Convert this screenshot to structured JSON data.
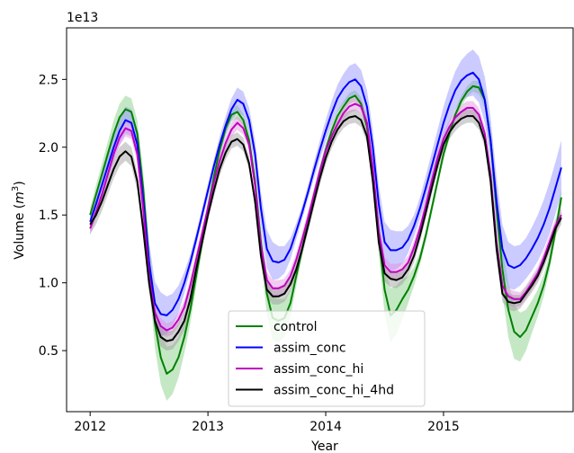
{
  "chart_data": {
    "type": "line",
    "title": "",
    "xlabel": "Year",
    "ylabel": "Volume ($m^3$)",
    "y_offset_label": "1e13",
    "x_ticks": [
      "2012",
      "2013",
      "2014",
      "2015"
    ],
    "y_ticks": [
      "0.5",
      "1.0",
      "1.5",
      "2.0",
      "2.5"
    ],
    "xlim": [
      2011.8,
      2016.1
    ],
    "ylim": [
      0.05,
      2.88
    ],
    "grid": false,
    "legend_position": "lower center",
    "series": [
      {
        "name": "control",
        "color": "#008000",
        "band_color": "#7ccc7c",
        "x": [
          2012.0,
          2012.05,
          2012.1,
          2012.15,
          2012.2,
          2012.25,
          2012.3,
          2012.35,
          2012.4,
          2012.45,
          2012.5,
          2012.55,
          2012.6,
          2012.65,
          2012.7,
          2012.75,
          2012.8,
          2012.85,
          2012.9,
          2012.95,
          2013.0,
          2013.05,
          2013.1,
          2013.15,
          2013.2,
          2013.25,
          2013.3,
          2013.35,
          2013.4,
          2013.45,
          2013.5,
          2013.55,
          2013.6,
          2013.65,
          2013.7,
          2013.75,
          2013.8,
          2013.85,
          2013.9,
          2013.95,
          2014.0,
          2014.05,
          2014.1,
          2014.15,
          2014.2,
          2014.25,
          2014.3,
          2014.35,
          2014.4,
          2014.45,
          2014.5,
          2014.55,
          2014.6,
          2014.65,
          2014.7,
          2014.75,
          2014.8,
          2014.85,
          2014.9,
          2014.95,
          2015.0,
          2015.05,
          2015.1,
          2015.15,
          2015.2,
          2015.25,
          2015.3,
          2015.35,
          2015.4,
          2015.45,
          2015.5,
          2015.55,
          2015.6,
          2015.65,
          2015.7,
          2015.75,
          2015.8,
          2015.85,
          2015.9,
          2015.95,
          2016.0
        ],
        "y": [
          1.5,
          1.65,
          1.8,
          1.95,
          2.1,
          2.22,
          2.28,
          2.26,
          2.1,
          1.7,
          1.15,
          0.7,
          0.45,
          0.33,
          0.36,
          0.45,
          0.6,
          0.8,
          1.05,
          1.3,
          1.55,
          1.78,
          1.98,
          2.14,
          2.24,
          2.26,
          2.2,
          2.05,
          1.75,
          1.3,
          0.92,
          0.74,
          0.72,
          0.74,
          0.85,
          1.05,
          1.25,
          1.45,
          1.65,
          1.82,
          1.98,
          2.12,
          2.23,
          2.3,
          2.36,
          2.38,
          2.32,
          2.15,
          1.8,
          1.35,
          0.95,
          0.76,
          0.8,
          0.88,
          0.95,
          1.05,
          1.18,
          1.35,
          1.55,
          1.75,
          1.95,
          2.1,
          2.24,
          2.34,
          2.41,
          2.45,
          2.44,
          2.35,
          2.05,
          1.55,
          1.1,
          0.8,
          0.64,
          0.6,
          0.65,
          0.75,
          0.85,
          0.98,
          1.15,
          1.38,
          1.63
        ],
        "band_halfwidth": [
          0.05,
          0.07,
          0.08,
          0.09,
          0.1,
          0.1,
          0.1,
          0.1,
          0.1,
          0.12,
          0.15,
          0.18,
          0.2,
          0.2,
          0.18,
          0.15,
          0.12,
          0.1,
          0.08,
          0.06,
          0.05,
          0.05,
          0.05,
          0.05,
          0.05,
          0.05,
          0.05,
          0.06,
          0.08,
          0.12,
          0.15,
          0.16,
          0.16,
          0.14,
          0.1,
          0.07,
          0.05,
          0.04,
          0.04,
          0.04,
          0.04,
          0.04,
          0.04,
          0.04,
          0.04,
          0.04,
          0.05,
          0.06,
          0.1,
          0.14,
          0.18,
          0.2,
          0.18,
          0.15,
          0.1,
          0.07,
          0.05,
          0.04,
          0.04,
          0.04,
          0.04,
          0.04,
          0.04,
          0.04,
          0.04,
          0.04,
          0.05,
          0.06,
          0.1,
          0.15,
          0.18,
          0.2,
          0.2,
          0.18,
          0.15,
          0.12,
          0.1,
          0.08,
          0.06,
          0.06,
          0.06
        ]
      },
      {
        "name": "assim_conc",
        "color": "#0000ff",
        "band_color": "#8c8cff",
        "x": [
          2012.0,
          2012.05,
          2012.1,
          2012.15,
          2012.2,
          2012.25,
          2012.3,
          2012.35,
          2012.4,
          2012.45,
          2012.5,
          2012.55,
          2012.6,
          2012.65,
          2012.7,
          2012.75,
          2012.8,
          2012.85,
          2012.9,
          2012.95,
          2013.0,
          2013.05,
          2013.1,
          2013.15,
          2013.2,
          2013.25,
          2013.3,
          2013.35,
          2013.4,
          2013.45,
          2013.5,
          2013.55,
          2013.6,
          2013.65,
          2013.7,
          2013.75,
          2013.8,
          2013.85,
          2013.9,
          2013.95,
          2014.0,
          2014.05,
          2014.1,
          2014.15,
          2014.2,
          2014.25,
          2014.3,
          2014.35,
          2014.4,
          2014.45,
          2014.5,
          2014.55,
          2014.6,
          2014.65,
          2014.7,
          2014.75,
          2014.8,
          2014.85,
          2014.9,
          2014.95,
          2015.0,
          2015.05,
          2015.1,
          2015.15,
          2015.2,
          2015.25,
          2015.3,
          2015.35,
          2015.4,
          2015.45,
          2015.5,
          2015.55,
          2015.6,
          2015.65,
          2015.7,
          2015.75,
          2015.8,
          2015.85,
          2015.9,
          2015.95,
          2016.0
        ],
        "y": [
          1.45,
          1.58,
          1.72,
          1.86,
          2.0,
          2.12,
          2.2,
          2.18,
          2.02,
          1.62,
          1.15,
          0.85,
          0.77,
          0.76,
          0.8,
          0.88,
          1.0,
          1.15,
          1.32,
          1.5,
          1.68,
          1.86,
          2.02,
          2.16,
          2.28,
          2.35,
          2.32,
          2.2,
          1.95,
          1.55,
          1.25,
          1.16,
          1.15,
          1.17,
          1.25,
          1.38,
          1.52,
          1.67,
          1.83,
          1.98,
          2.12,
          2.25,
          2.36,
          2.43,
          2.48,
          2.5,
          2.45,
          2.3,
          2.0,
          1.58,
          1.3,
          1.24,
          1.24,
          1.26,
          1.32,
          1.42,
          1.55,
          1.7,
          1.86,
          2.02,
          2.18,
          2.31,
          2.42,
          2.49,
          2.53,
          2.55,
          2.5,
          2.35,
          2.05,
          1.6,
          1.25,
          1.13,
          1.11,
          1.13,
          1.18,
          1.25,
          1.33,
          1.43,
          1.55,
          1.7,
          1.85
        ],
        "band_halfwidth": [
          0.05,
          0.06,
          0.07,
          0.08,
          0.09,
          0.1,
          0.1,
          0.1,
          0.1,
          0.12,
          0.15,
          0.16,
          0.16,
          0.14,
          0.12,
          0.1,
          0.08,
          0.06,
          0.05,
          0.05,
          0.05,
          0.05,
          0.06,
          0.07,
          0.08,
          0.09,
          0.09,
          0.09,
          0.1,
          0.12,
          0.14,
          0.14,
          0.12,
          0.1,
          0.08,
          0.06,
          0.05,
          0.05,
          0.06,
          0.07,
          0.08,
          0.09,
          0.1,
          0.11,
          0.12,
          0.12,
          0.12,
          0.12,
          0.13,
          0.14,
          0.15,
          0.15,
          0.14,
          0.12,
          0.1,
          0.08,
          0.08,
          0.09,
          0.1,
          0.11,
          0.12,
          0.13,
          0.14,
          0.15,
          0.16,
          0.17,
          0.17,
          0.17,
          0.17,
          0.18,
          0.18,
          0.17,
          0.16,
          0.15,
          0.15,
          0.16,
          0.17,
          0.18,
          0.19,
          0.19,
          0.2
        ]
      },
      {
        "name": "assim_conc_hi",
        "color": "#bf00bf",
        "band_color": "#df8cdf",
        "x": [
          2012.0,
          2012.05,
          2012.1,
          2012.15,
          2012.2,
          2012.25,
          2012.3,
          2012.35,
          2012.4,
          2012.45,
          2012.5,
          2012.55,
          2012.6,
          2012.65,
          2012.7,
          2012.75,
          2012.8,
          2012.85,
          2012.9,
          2012.95,
          2013.0,
          2013.05,
          2013.1,
          2013.15,
          2013.2,
          2013.25,
          2013.3,
          2013.35,
          2013.4,
          2013.45,
          2013.5,
          2013.55,
          2013.6,
          2013.65,
          2013.7,
          2013.75,
          2013.8,
          2013.85,
          2013.9,
          2013.95,
          2014.0,
          2014.05,
          2014.1,
          2014.15,
          2014.2,
          2014.25,
          2014.3,
          2014.35,
          2014.4,
          2014.45,
          2014.5,
          2014.55,
          2014.6,
          2014.65,
          2014.7,
          2014.75,
          2014.8,
          2014.85,
          2014.9,
          2014.95,
          2015.0,
          2015.05,
          2015.1,
          2015.15,
          2015.2,
          2015.25,
          2015.3,
          2015.35,
          2015.4,
          2015.45,
          2015.5,
          2015.55,
          2015.6,
          2015.65,
          2015.7,
          2015.75,
          2015.8,
          2015.85,
          2015.9,
          2015.95,
          2016.0
        ],
        "y": [
          1.4,
          1.52,
          1.65,
          1.8,
          1.95,
          2.07,
          2.14,
          2.12,
          1.95,
          1.55,
          1.05,
          0.78,
          0.68,
          0.65,
          0.67,
          0.73,
          0.82,
          0.98,
          1.17,
          1.36,
          1.55,
          1.74,
          1.9,
          2.03,
          2.13,
          2.18,
          2.14,
          2.02,
          1.72,
          1.28,
          1.02,
          0.96,
          0.96,
          0.98,
          1.05,
          1.17,
          1.32,
          1.48,
          1.65,
          1.82,
          1.97,
          2.08,
          2.17,
          2.25,
          2.3,
          2.32,
          2.3,
          2.18,
          1.85,
          1.38,
          1.13,
          1.08,
          1.08,
          1.1,
          1.15,
          1.26,
          1.4,
          1.57,
          1.75,
          1.92,
          2.06,
          2.15,
          2.22,
          2.26,
          2.29,
          2.29,
          2.24,
          2.1,
          1.8,
          1.3,
          0.98,
          0.9,
          0.88,
          0.88,
          0.93,
          1.0,
          1.07,
          1.18,
          1.3,
          1.42,
          1.5
        ],
        "band_halfwidth": [
          0.05,
          0.05,
          0.05,
          0.05,
          0.06,
          0.06,
          0.06,
          0.06,
          0.06,
          0.07,
          0.07,
          0.07,
          0.06,
          0.05,
          0.05,
          0.05,
          0.05,
          0.05,
          0.05,
          0.05,
          0.05,
          0.05,
          0.05,
          0.05,
          0.05,
          0.05,
          0.05,
          0.05,
          0.05,
          0.06,
          0.06,
          0.06,
          0.06,
          0.05,
          0.05,
          0.05,
          0.05,
          0.05,
          0.05,
          0.05,
          0.05,
          0.05,
          0.05,
          0.05,
          0.05,
          0.05,
          0.05,
          0.05,
          0.05,
          0.06,
          0.06,
          0.06,
          0.06,
          0.05,
          0.05,
          0.05,
          0.05,
          0.05,
          0.05,
          0.05,
          0.05,
          0.05,
          0.05,
          0.05,
          0.05,
          0.05,
          0.05,
          0.05,
          0.05,
          0.06,
          0.06,
          0.06,
          0.06,
          0.05,
          0.05,
          0.05,
          0.05,
          0.05,
          0.05,
          0.05,
          0.05
        ]
      },
      {
        "name": "assim_conc_hi_4hd",
        "color": "#000000",
        "band_color": "#9a9a9a",
        "x": [
          2012.0,
          2012.05,
          2012.1,
          2012.15,
          2012.2,
          2012.25,
          2012.3,
          2012.35,
          2012.4,
          2012.45,
          2012.5,
          2012.55,
          2012.6,
          2012.65,
          2012.7,
          2012.75,
          2012.8,
          2012.85,
          2012.9,
          2012.95,
          2013.0,
          2013.05,
          2013.1,
          2013.15,
          2013.2,
          2013.25,
          2013.3,
          2013.35,
          2013.4,
          2013.45,
          2013.5,
          2013.55,
          2013.6,
          2013.65,
          2013.7,
          2013.75,
          2013.8,
          2013.85,
          2013.9,
          2013.95,
          2014.0,
          2014.05,
          2014.1,
          2014.15,
          2014.2,
          2014.25,
          2014.3,
          2014.35,
          2014.4,
          2014.45,
          2014.5,
          2014.55,
          2014.6,
          2014.65,
          2014.7,
          2014.75,
          2014.8,
          2014.85,
          2014.9,
          2014.95,
          2015.0,
          2015.05,
          2015.1,
          2015.15,
          2015.2,
          2015.25,
          2015.3,
          2015.35,
          2015.4,
          2015.45,
          2015.5,
          2015.55,
          2015.6,
          2015.65,
          2015.7,
          2015.75,
          2015.8,
          2015.85,
          2015.9,
          2015.95,
          2016.0
        ],
        "y": [
          1.43,
          1.5,
          1.6,
          1.72,
          1.84,
          1.93,
          1.97,
          1.93,
          1.75,
          1.4,
          1.0,
          0.72,
          0.6,
          0.57,
          0.58,
          0.64,
          0.72,
          0.88,
          1.1,
          1.3,
          1.5,
          1.68,
          1.84,
          1.96,
          2.04,
          2.06,
          2.02,
          1.88,
          1.6,
          1.2,
          0.95,
          0.9,
          0.9,
          0.92,
          0.99,
          1.1,
          1.25,
          1.42,
          1.6,
          1.77,
          1.92,
          2.04,
          2.13,
          2.19,
          2.22,
          2.23,
          2.2,
          2.08,
          1.75,
          1.3,
          1.07,
          1.03,
          1.02,
          1.04,
          1.1,
          1.2,
          1.35,
          1.52,
          1.7,
          1.87,
          2.02,
          2.11,
          2.17,
          2.21,
          2.23,
          2.23,
          2.18,
          2.05,
          1.75,
          1.25,
          0.92,
          0.86,
          0.85,
          0.86,
          0.92,
          0.98,
          1.05,
          1.15,
          1.27,
          1.4,
          1.48
        ],
        "band_halfwidth": [
          0.07,
          0.07,
          0.07,
          0.07,
          0.07,
          0.07,
          0.07,
          0.07,
          0.07,
          0.07,
          0.07,
          0.07,
          0.07,
          0.07,
          0.07,
          0.07,
          0.07,
          0.07,
          0.07,
          0.06,
          0.05,
          0.05,
          0.05,
          0.05,
          0.05,
          0.05,
          0.05,
          0.05,
          0.05,
          0.06,
          0.06,
          0.06,
          0.06,
          0.06,
          0.05,
          0.05,
          0.05,
          0.05,
          0.05,
          0.05,
          0.05,
          0.05,
          0.05,
          0.05,
          0.05,
          0.05,
          0.05,
          0.05,
          0.05,
          0.06,
          0.06,
          0.06,
          0.06,
          0.05,
          0.05,
          0.05,
          0.05,
          0.05,
          0.05,
          0.05,
          0.05,
          0.05,
          0.05,
          0.05,
          0.05,
          0.05,
          0.05,
          0.05,
          0.05,
          0.06,
          0.06,
          0.06,
          0.06,
          0.05,
          0.05,
          0.05,
          0.05,
          0.05,
          0.05,
          0.05,
          0.05
        ]
      }
    ]
  }
}
